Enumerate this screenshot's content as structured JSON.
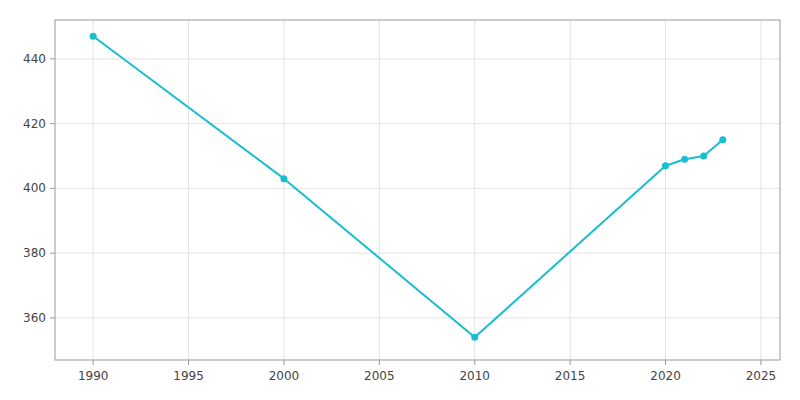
{
  "chart_data": {
    "type": "line",
    "x": [
      1990,
      2000,
      2010,
      2020,
      2021,
      2022,
      2023
    ],
    "values": [
      447,
      403,
      354,
      407,
      409,
      410,
      415
    ],
    "color": "#17becf",
    "marker": "circle",
    "xlim": [
      1988,
      2026
    ],
    "ylim": [
      347,
      452
    ],
    "xticks": [
      1990,
      1995,
      2000,
      2005,
      2010,
      2015,
      2020,
      2025
    ],
    "yticks": [
      360,
      380,
      400,
      420,
      440
    ],
    "grid": true
  }
}
